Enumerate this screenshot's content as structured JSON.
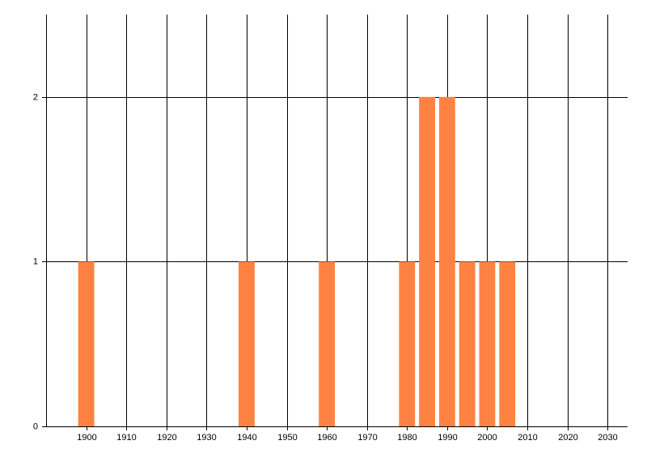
{
  "chart_data": {
    "type": "bar",
    "x": [
      1900,
      1940,
      1960,
      1980,
      1985,
      1990,
      1995,
      2000,
      2005
    ],
    "values": [
      1,
      1,
      1,
      1,
      2,
      2,
      1,
      1,
      1
    ],
    "color": "#ff8243",
    "xlim": [
      1890,
      2035
    ],
    "xticks": [
      1900,
      1910,
      1920,
      1930,
      1940,
      1950,
      1960,
      1970,
      1980,
      1990,
      2000,
      2010,
      2020,
      2030
    ],
    "ylim": [
      0,
      2.5
    ],
    "yticks": [
      0,
      1,
      2
    ],
    "grid": true
  }
}
